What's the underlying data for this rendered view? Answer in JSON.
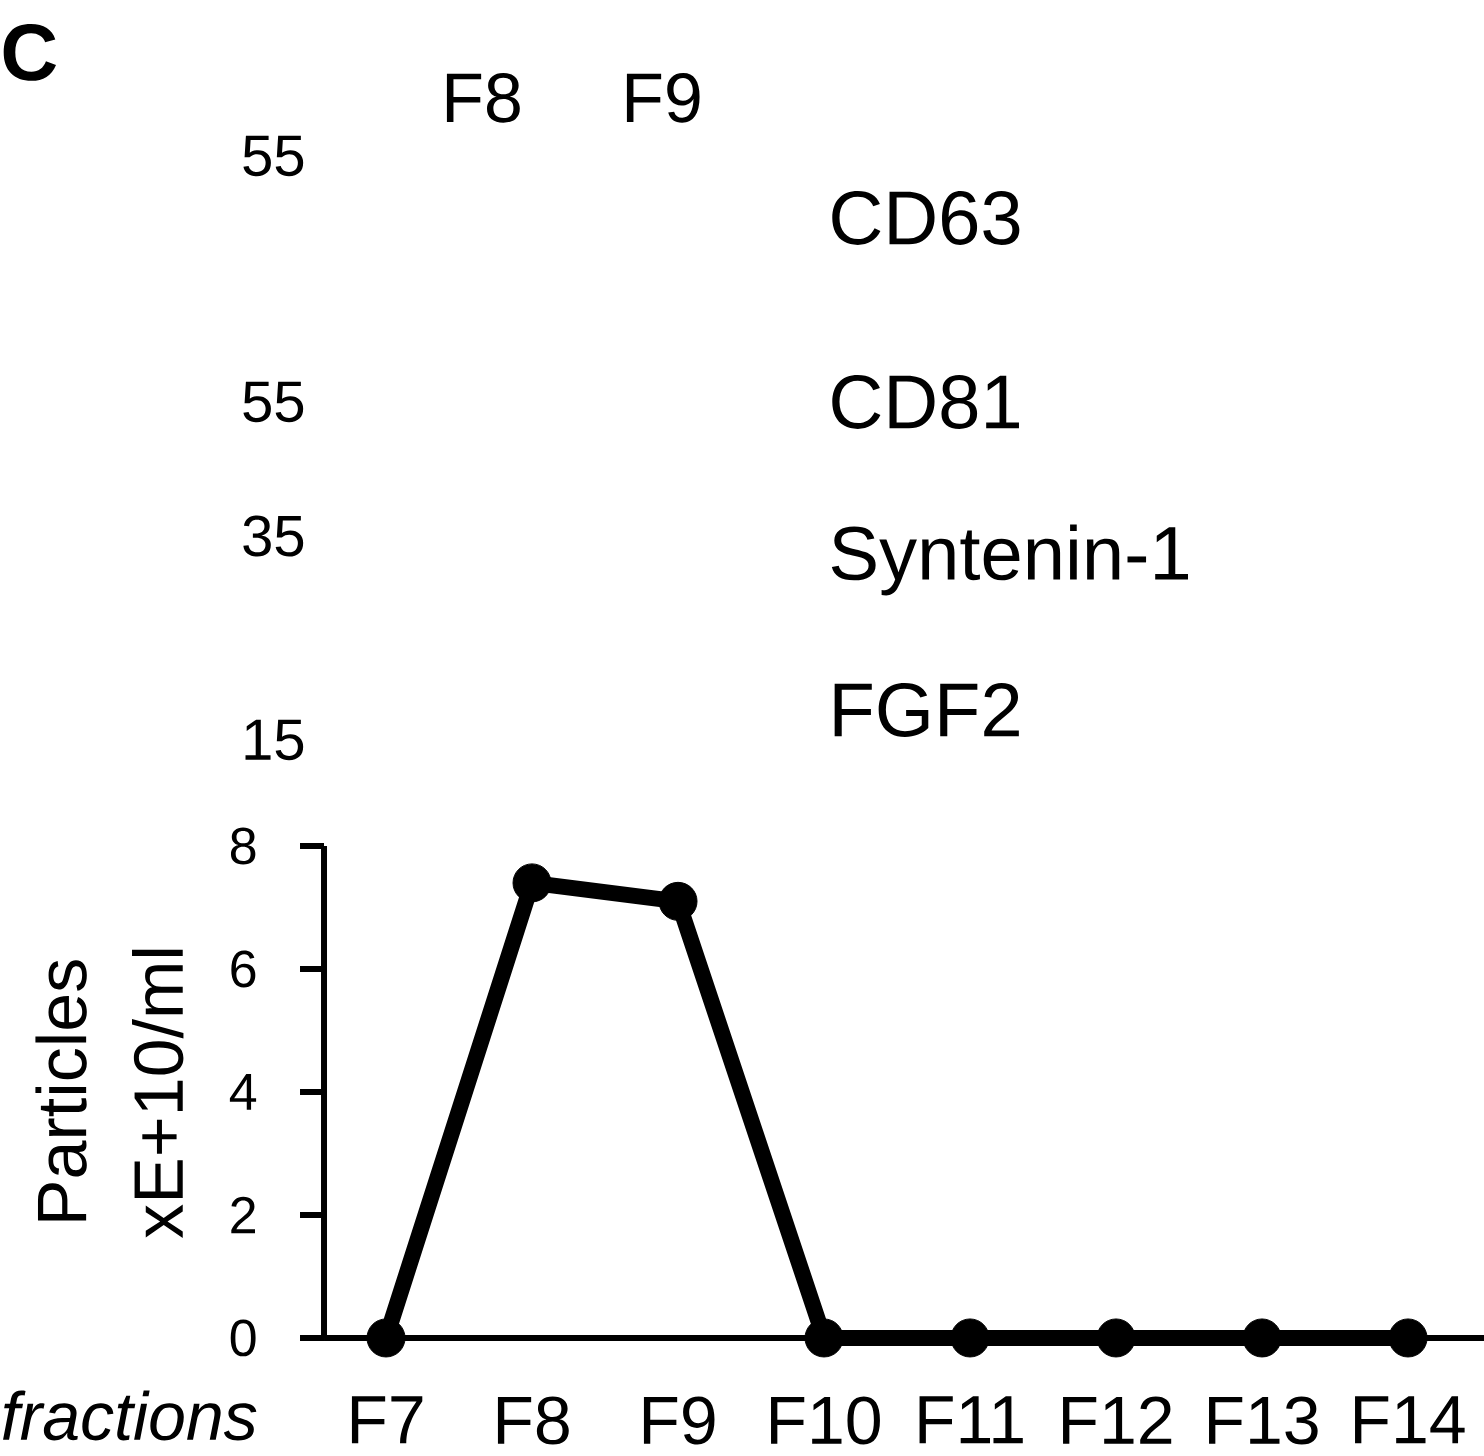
{
  "chart_data": {
    "type": "line",
    "title": "C",
    "categories": [
      "F7",
      "F8",
      "F9",
      "F10",
      "F11",
      "F12",
      "F13",
      "F14"
    ],
    "values": [
      0,
      7.4,
      7.1,
      0,
      0,
      0,
      0,
      0
    ],
    "color": "#000000",
    "marker": "circle",
    "line_style": "solid",
    "xlabel": "fractions",
    "ylabel": "Particles xE+10/ml",
    "ylim": [
      0,
      8
    ],
    "yticks": [
      0,
      2,
      4,
      6,
      8
    ],
    "annotations": [
      "F8",
      "F9",
      "55",
      "CD63",
      "55",
      "CD81",
      "35",
      "Syntenin-1",
      "15",
      "FGF2"
    ]
  }
}
